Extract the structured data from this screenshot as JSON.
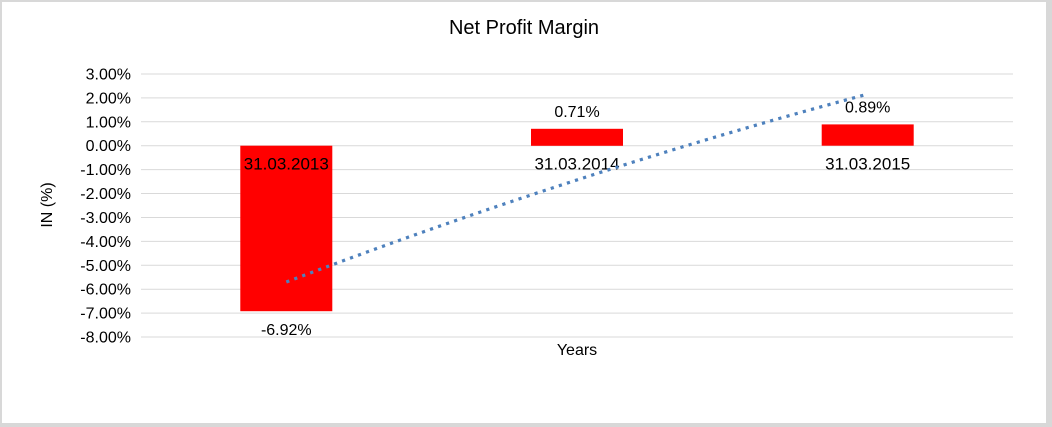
{
  "page": {
    "background": "#FFFFFF",
    "border_color": "#D8D8D8"
  },
  "chart_data": {
    "type": "bar",
    "title": "Net Profit Margin",
    "xlabel": "Years",
    "ylabel": "IN (%)",
    "categories": [
      "31.03.2013",
      "31.03.2014",
      "31.03.2015"
    ],
    "values": [
      -6.92,
      0.71,
      0.89
    ],
    "data_labels": [
      "-6.92%",
      "0.71%",
      "0.89%"
    ],
    "bar_color": "#FF0000",
    "text_color": "#000000",
    "ylim": [
      -8,
      3
    ],
    "y_tick_values": [
      3,
      2,
      1,
      0,
      -1,
      -2,
      -3,
      -4,
      -5,
      -6,
      -7,
      -8
    ],
    "y_tick_labels": [
      "3.00%",
      "2.00%",
      "1.00%",
      "0.00%",
      "-1.00%",
      "-2.00%",
      "-3.00%",
      "-4.00%",
      "-5.00%",
      "-6.00%",
      "-7.00%",
      "-8.00%"
    ],
    "grid": true,
    "gridline_color": "#D9D9D9",
    "legend": "none",
    "trendline": {
      "style": "dotted",
      "color": "#4E81BD",
      "values_at_categories": [
        -5.7,
        -1.43,
        2.16
      ]
    }
  }
}
